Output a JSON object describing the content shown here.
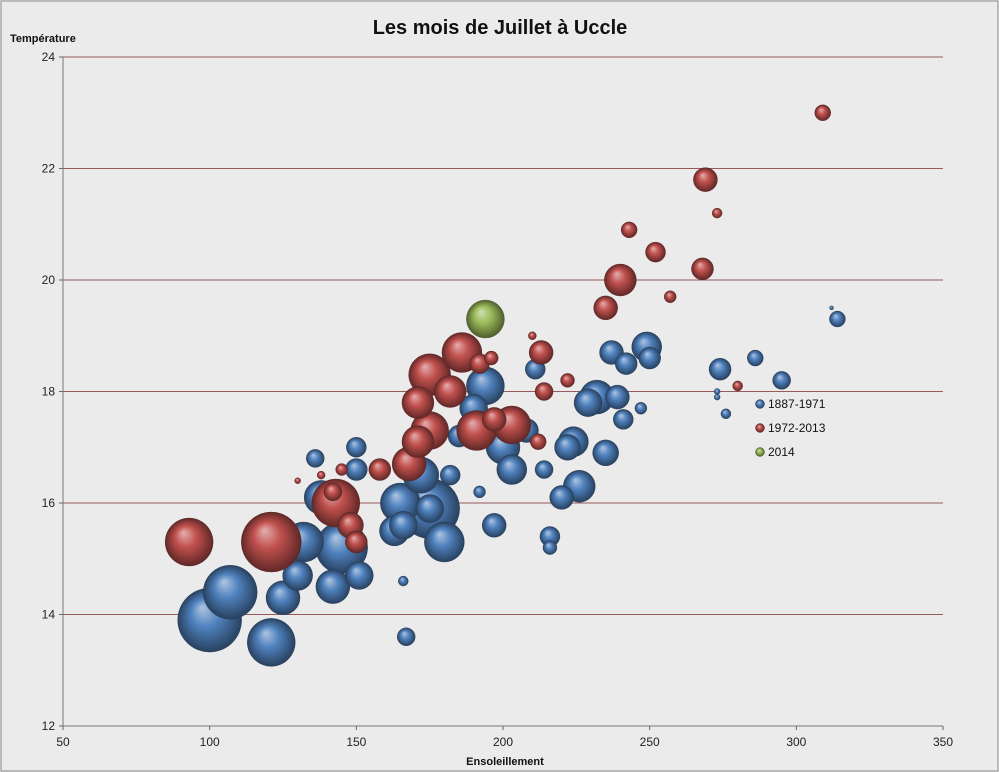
{
  "chart_data": {
    "type": "scatter",
    "title": "Les mois de Juillet à Uccle",
    "xlabel": "Ensoleillement",
    "ylabel": "Température",
    "xlim": [
      50,
      350
    ],
    "ylim": [
      12,
      24
    ],
    "xticks": [
      50,
      100,
      150,
      200,
      250,
      300,
      350
    ],
    "yticks": [
      12,
      14,
      16,
      18,
      20,
      22,
      24
    ],
    "grid": "horizontal",
    "legend_position": "right-middle",
    "marker": "bubble",
    "series": [
      {
        "name": "1887-1971",
        "color": "#4f81bd",
        "points": [
          [
            100,
            13.9,
            32
          ],
          [
            107,
            14.4,
            27
          ],
          [
            121,
            13.5,
            24
          ],
          [
            125,
            14.3,
            17
          ],
          [
            130,
            14.7,
            15
          ],
          [
            132,
            15.3,
            20
          ],
          [
            138,
            16.1,
            17
          ],
          [
            142,
            14.5,
            17
          ],
          [
            145,
            15.2,
            26
          ],
          [
            151,
            14.7,
            14
          ],
          [
            150,
            16.6,
            11
          ],
          [
            150,
            17.0,
            10
          ],
          [
            136,
            16.8,
            9
          ],
          [
            163,
            15.5,
            15
          ],
          [
            165,
            16.0,
            20
          ],
          [
            166,
            15.6,
            14
          ],
          [
            172,
            16.5,
            18
          ],
          [
            175,
            15.9,
            30
          ],
          [
            180,
            15.3,
            20
          ],
          [
            175,
            15.9,
            14
          ],
          [
            167,
            13.6,
            9
          ],
          [
            166,
            14.6,
            5
          ],
          [
            182,
            16.5,
            10
          ],
          [
            185,
            17.2,
            11
          ],
          [
            190,
            17.7,
            14
          ],
          [
            194,
            18.1,
            19
          ],
          [
            192,
            16.2,
            6
          ],
          [
            197,
            15.6,
            12
          ],
          [
            200,
            17.0,
            17
          ],
          [
            203,
            16.6,
            15
          ],
          [
            208,
            17.3,
            12
          ],
          [
            211,
            18.4,
            10
          ],
          [
            214,
            16.6,
            9
          ],
          [
            216,
            15.4,
            10
          ],
          [
            216,
            15.2,
            7
          ],
          [
            220,
            16.1,
            12
          ],
          [
            222,
            17.0,
            13
          ],
          [
            224,
            17.1,
            15
          ],
          [
            226,
            16.3,
            16
          ],
          [
            229,
            17.8,
            14
          ],
          [
            232,
            17.9,
            17
          ],
          [
            235,
            16.9,
            13
          ],
          [
            237,
            18.7,
            12
          ],
          [
            239,
            17.9,
            12
          ],
          [
            241,
            17.5,
            10
          ],
          [
            242,
            18.5,
            11
          ],
          [
            247,
            17.7,
            6
          ],
          [
            250,
            18.6,
            11
          ],
          [
            249,
            18.8,
            15
          ],
          [
            274,
            18.4,
            11
          ],
          [
            276,
            17.6,
            5
          ],
          [
            273,
            17.9,
            3
          ],
          [
            273,
            18.0,
            3
          ],
          [
            286,
            18.6,
            8
          ],
          [
            295,
            18.2,
            9
          ],
          [
            314,
            19.3,
            8
          ],
          [
            312,
            19.5,
            2
          ]
        ]
      },
      {
        "name": "1972-2013",
        "color": "#c0504d",
        "points": [
          [
            93,
            15.3,
            24
          ],
          [
            121,
            15.3,
            30
          ],
          [
            130,
            16.4,
            3
          ],
          [
            138,
            16.5,
            4
          ],
          [
            142,
            16.2,
            9
          ],
          [
            143,
            16.0,
            24
          ],
          [
            145,
            16.6,
            6
          ],
          [
            148,
            15.6,
            13
          ],
          [
            150,
            15.3,
            11
          ],
          [
            158,
            16.6,
            11
          ],
          [
            168,
            16.7,
            17
          ],
          [
            171,
            17.1,
            16
          ],
          [
            171,
            17.8,
            16
          ],
          [
            175,
            17.3,
            19
          ],
          [
            175,
            18.3,
            21
          ],
          [
            182,
            18.0,
            16
          ],
          [
            186,
            18.7,
            20
          ],
          [
            191,
            17.3,
            20
          ],
          [
            192,
            18.5,
            10
          ],
          [
            196,
            18.6,
            7
          ],
          [
            197,
            17.5,
            12
          ],
          [
            203,
            17.4,
            19
          ],
          [
            210,
            19.0,
            4
          ],
          [
            212,
            17.1,
            8
          ],
          [
            213,
            18.7,
            12
          ],
          [
            214,
            18.0,
            9
          ],
          [
            222,
            18.2,
            7
          ],
          [
            235,
            19.5,
            12
          ],
          [
            240,
            20.0,
            16
          ],
          [
            243,
            20.9,
            8
          ],
          [
            252,
            20.5,
            10
          ],
          [
            257,
            19.7,
            6
          ],
          [
            268,
            20.2,
            11
          ],
          [
            269,
            21.8,
            12
          ],
          [
            273,
            21.2,
            5
          ],
          [
            280,
            18.1,
            5
          ],
          [
            309,
            23.0,
            8
          ]
        ]
      },
      {
        "name": "2014",
        "color": "#9bbb59",
        "points": [
          [
            194,
            19.3,
            19
          ]
        ]
      }
    ]
  }
}
